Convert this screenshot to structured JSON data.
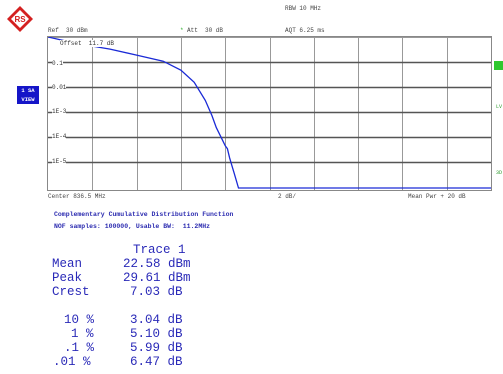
{
  "header": {
    "rbw": "RBW 10 MHz",
    "ref": "Ref  30 dBm",
    "att_marker": "*",
    "att": "Att  30 dB",
    "aqt": "AQT 6.25 ms"
  },
  "plot": {
    "offset_label": "Offset  11.7 dB",
    "y_ticks": [
      "0.1",
      "0.01",
      "1E-3",
      "1E-4",
      "1E-5"
    ],
    "side_button_1": "1 SA",
    "side_button_2": "VIEW",
    "edge_markers": [
      "LV",
      "3D"
    ],
    "footer_left": "Center 836.5 MHz",
    "footer_mid": "2 dB/",
    "footer_right": "Mean Pwr + 20 dB",
    "trace_color": "#1a2ad6",
    "trace_points": [
      [
        0,
        0.0
      ],
      [
        0.03,
        0.02
      ],
      [
        0.08,
        0.05
      ],
      [
        0.14,
        0.08
      ],
      [
        0.2,
        0.12
      ],
      [
        0.26,
        0.16
      ],
      [
        0.3,
        0.22
      ],
      [
        0.33,
        0.3
      ],
      [
        0.355,
        0.42
      ],
      [
        0.37,
        0.52
      ],
      [
        0.38,
        0.6
      ],
      [
        0.39,
        0.66
      ],
      [
        0.4,
        0.72
      ],
      [
        0.405,
        0.74
      ],
      [
        0.41,
        0.8
      ],
      [
        0.415,
        0.85
      ],
      [
        0.42,
        0.9
      ],
      [
        0.43,
        1.0
      ],
      [
        1.0,
        1.0
      ]
    ]
  },
  "ccdf": {
    "title": "Complementary Cumulative Distribution Function",
    "samples": "NOF samples: 100000, Usable BW:  11.2MHz"
  },
  "results": {
    "trace_header": "Trace 1",
    "rows": [
      {
        "label": "Mean",
        "value": "22.58 dBm"
      },
      {
        "label": "Peak",
        "value": "29.61 dBm"
      },
      {
        "label": "Crest",
        "value": "7.03 dB"
      }
    ],
    "percent_rows": [
      {
        "pct": "10 %",
        "value": "3.04 dB"
      },
      {
        "pct": "1 %",
        "value": "5.10 dB"
      },
      {
        "pct": ".1 %",
        "value": "5.99 dB"
      },
      {
        "pct": ".01 %",
        "value": "6.47 dB"
      }
    ]
  }
}
